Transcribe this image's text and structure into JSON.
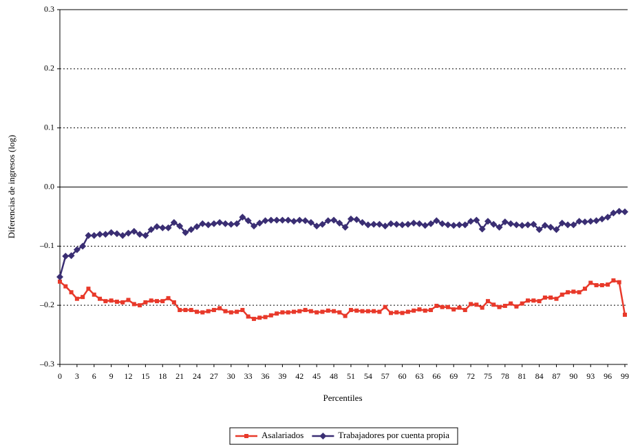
{
  "chart_data": {
    "type": "line",
    "x_label": "Percentiles",
    "y_label": "Diferencias de ingresos (log)",
    "x": [
      0,
      1,
      2,
      3,
      4,
      5,
      6,
      7,
      8,
      9,
      10,
      11,
      12,
      13,
      14,
      15,
      16,
      17,
      18,
      19,
      20,
      21,
      22,
      23,
      24,
      25,
      26,
      27,
      28,
      29,
      30,
      31,
      32,
      33,
      34,
      35,
      36,
      37,
      38,
      39,
      40,
      41,
      42,
      43,
      44,
      45,
      46,
      47,
      48,
      49,
      50,
      51,
      52,
      53,
      54,
      55,
      56,
      57,
      58,
      59,
      60,
      61,
      62,
      63,
      64,
      65,
      66,
      67,
      68,
      69,
      70,
      71,
      72,
      73,
      74,
      75,
      76,
      77,
      78,
      79,
      80,
      81,
      82,
      83,
      84,
      85,
      86,
      87,
      88,
      89,
      90,
      91,
      92,
      93,
      94,
      95,
      96,
      97,
      98,
      99
    ],
    "series": [
      {
        "name": "Asalariados",
        "color": "#e8392a",
        "marker": "square",
        "values": [
          -0.16,
          -0.168,
          -0.178,
          -0.189,
          -0.186,
          -0.172,
          -0.182,
          -0.189,
          -0.193,
          -0.192,
          -0.194,
          -0.195,
          -0.191,
          -0.198,
          -0.2,
          -0.195,
          -0.192,
          -0.193,
          -0.193,
          -0.188,
          -0.195,
          -0.208,
          -0.208,
          -0.208,
          -0.211,
          -0.212,
          -0.21,
          -0.208,
          -0.205,
          -0.21,
          -0.212,
          -0.211,
          -0.208,
          -0.219,
          -0.223,
          -0.221,
          -0.22,
          -0.217,
          -0.214,
          -0.212,
          -0.212,
          -0.211,
          -0.21,
          -0.208,
          -0.21,
          -0.212,
          -0.211,
          -0.209,
          -0.21,
          -0.212,
          -0.218,
          -0.208,
          -0.209,
          -0.21,
          -0.21,
          -0.21,
          -0.211,
          -0.203,
          -0.213,
          -0.212,
          -0.213,
          -0.211,
          -0.209,
          -0.207,
          -0.209,
          -0.208,
          -0.201,
          -0.203,
          -0.203,
          -0.207,
          -0.204,
          -0.208,
          -0.198,
          -0.199,
          -0.204,
          -0.193,
          -0.199,
          -0.203,
          -0.201,
          -0.197,
          -0.202,
          -0.197,
          -0.192,
          -0.192,
          -0.193,
          -0.187,
          -0.187,
          -0.189,
          -0.182,
          -0.178,
          -0.177,
          -0.178,
          -0.172,
          -0.162,
          -0.166,
          -0.166,
          -0.165,
          -0.158,
          -0.161,
          -0.216
        ]
      },
      {
        "name": "Trabajadores por cuenta propia",
        "color": "#3a2e73",
        "marker": "diamond",
        "values": [
          -0.152,
          -0.117,
          -0.116,
          -0.106,
          -0.1,
          -0.082,
          -0.082,
          -0.08,
          -0.08,
          -0.077,
          -0.079,
          -0.082,
          -0.078,
          -0.075,
          -0.08,
          -0.082,
          -0.072,
          -0.067,
          -0.069,
          -0.069,
          -0.06,
          -0.066,
          -0.077,
          -0.072,
          -0.067,
          -0.062,
          -0.064,
          -0.062,
          -0.06,
          -0.062,
          -0.063,
          -0.062,
          -0.051,
          -0.057,
          -0.066,
          -0.061,
          -0.057,
          -0.056,
          -0.056,
          -0.056,
          -0.056,
          -0.058,
          -0.056,
          -0.057,
          -0.06,
          -0.066,
          -0.063,
          -0.057,
          -0.056,
          -0.061,
          -0.068,
          -0.054,
          -0.055,
          -0.06,
          -0.064,
          -0.063,
          -0.063,
          -0.066,
          -0.062,
          -0.063,
          -0.064,
          -0.063,
          -0.061,
          -0.062,
          -0.065,
          -0.062,
          -0.057,
          -0.062,
          -0.064,
          -0.065,
          -0.064,
          -0.064,
          -0.058,
          -0.056,
          -0.071,
          -0.058,
          -0.063,
          -0.068,
          -0.059,
          -0.062,
          -0.064,
          -0.065,
          -0.064,
          -0.063,
          -0.072,
          -0.065,
          -0.068,
          -0.072,
          -0.061,
          -0.064,
          -0.064,
          -0.058,
          -0.059,
          -0.058,
          -0.057,
          -0.054,
          -0.051,
          -0.044,
          -0.041,
          -0.042
        ]
      }
    ],
    "xlim": [
      0,
      99
    ],
    "xticks": [
      0,
      3,
      6,
      9,
      12,
      15,
      18,
      21,
      24,
      27,
      30,
      33,
      36,
      39,
      42,
      45,
      48,
      51,
      54,
      57,
      60,
      63,
      66,
      69,
      72,
      75,
      78,
      81,
      84,
      87,
      90,
      93,
      96,
      99
    ],
    "ylim": [
      -0.3,
      0.3
    ],
    "yticks": [
      {
        "value": -0.3,
        "label": "–0.3"
      },
      {
        "value": -0.2,
        "label": "–0.2"
      },
      {
        "value": -0.1,
        "label": "–0.1"
      },
      {
        "value": 0,
        "label": "0.0"
      },
      0.1,
      0.2,
      0.3
    ],
    "grid": true,
    "legend": "bottom"
  }
}
